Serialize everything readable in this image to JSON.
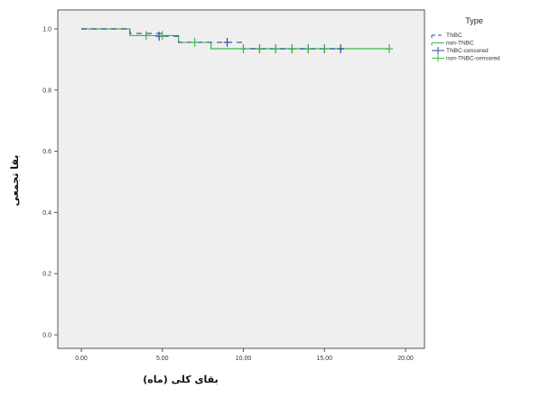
{
  "chart_data": {
    "type": "line",
    "subtype": "kaplan-meier survival curve",
    "xlabel": "بقای کلی (ماه)",
    "ylabel": "بقا تجمعی",
    "xlim": [
      0,
      20
    ],
    "ylim": [
      0,
      1
    ],
    "xticks": [
      "0.00",
      "5.00",
      "10.00",
      "15.00",
      "20.00"
    ],
    "yticks": [
      "0.0",
      "0.2",
      "0.4",
      "0.6",
      "0.8",
      "1.0"
    ],
    "legend": {
      "title": "Type",
      "placement": "right",
      "entries": [
        "TNBC",
        "non-TNBC",
        "TNBC-censored",
        "non-TNBC-censored"
      ]
    },
    "background": "#efefef",
    "colors": {
      "TNBC": "#2e4e9e",
      "non-TNBC": "#3db94a"
    },
    "series": [
      {
        "name": "TNBC",
        "style": "dashed-step",
        "steps": [
          [
            0,
            1.0
          ],
          [
            3,
            0.985
          ],
          [
            5,
            0.976
          ],
          [
            6,
            0.956
          ],
          [
            9.5,
            0.956
          ],
          [
            10,
            0.935
          ],
          [
            16.2,
            0.935
          ]
        ]
      },
      {
        "name": "non-TNBC",
        "style": "solid-step",
        "steps": [
          [
            0,
            1.0
          ],
          [
            3,
            0.978
          ],
          [
            6,
            0.956
          ],
          [
            8,
            0.935
          ],
          [
            19,
            0.935
          ]
        ]
      },
      {
        "name": "TNBC-censored",
        "style": "plus-marker",
        "points": [
          [
            4.8,
            0.976
          ],
          [
            9.0,
            0.956
          ],
          [
            11,
            0.935
          ],
          [
            12,
            0.935
          ],
          [
            13,
            0.935
          ],
          [
            14,
            0.935
          ],
          [
            15,
            0.935
          ],
          [
            16,
            0.935
          ]
        ]
      },
      {
        "name": "non-TNBC-censored",
        "style": "plus-marker",
        "points": [
          [
            4.0,
            0.978
          ],
          [
            5.0,
            0.978
          ],
          [
            7.0,
            0.956
          ],
          [
            10.0,
            0.935
          ],
          [
            11.0,
            0.935
          ],
          [
            12.0,
            0.935
          ],
          [
            13.0,
            0.935
          ],
          [
            14.0,
            0.935
          ],
          [
            15.0,
            0.935
          ],
          [
            19.0,
            0.935
          ]
        ]
      }
    ]
  }
}
